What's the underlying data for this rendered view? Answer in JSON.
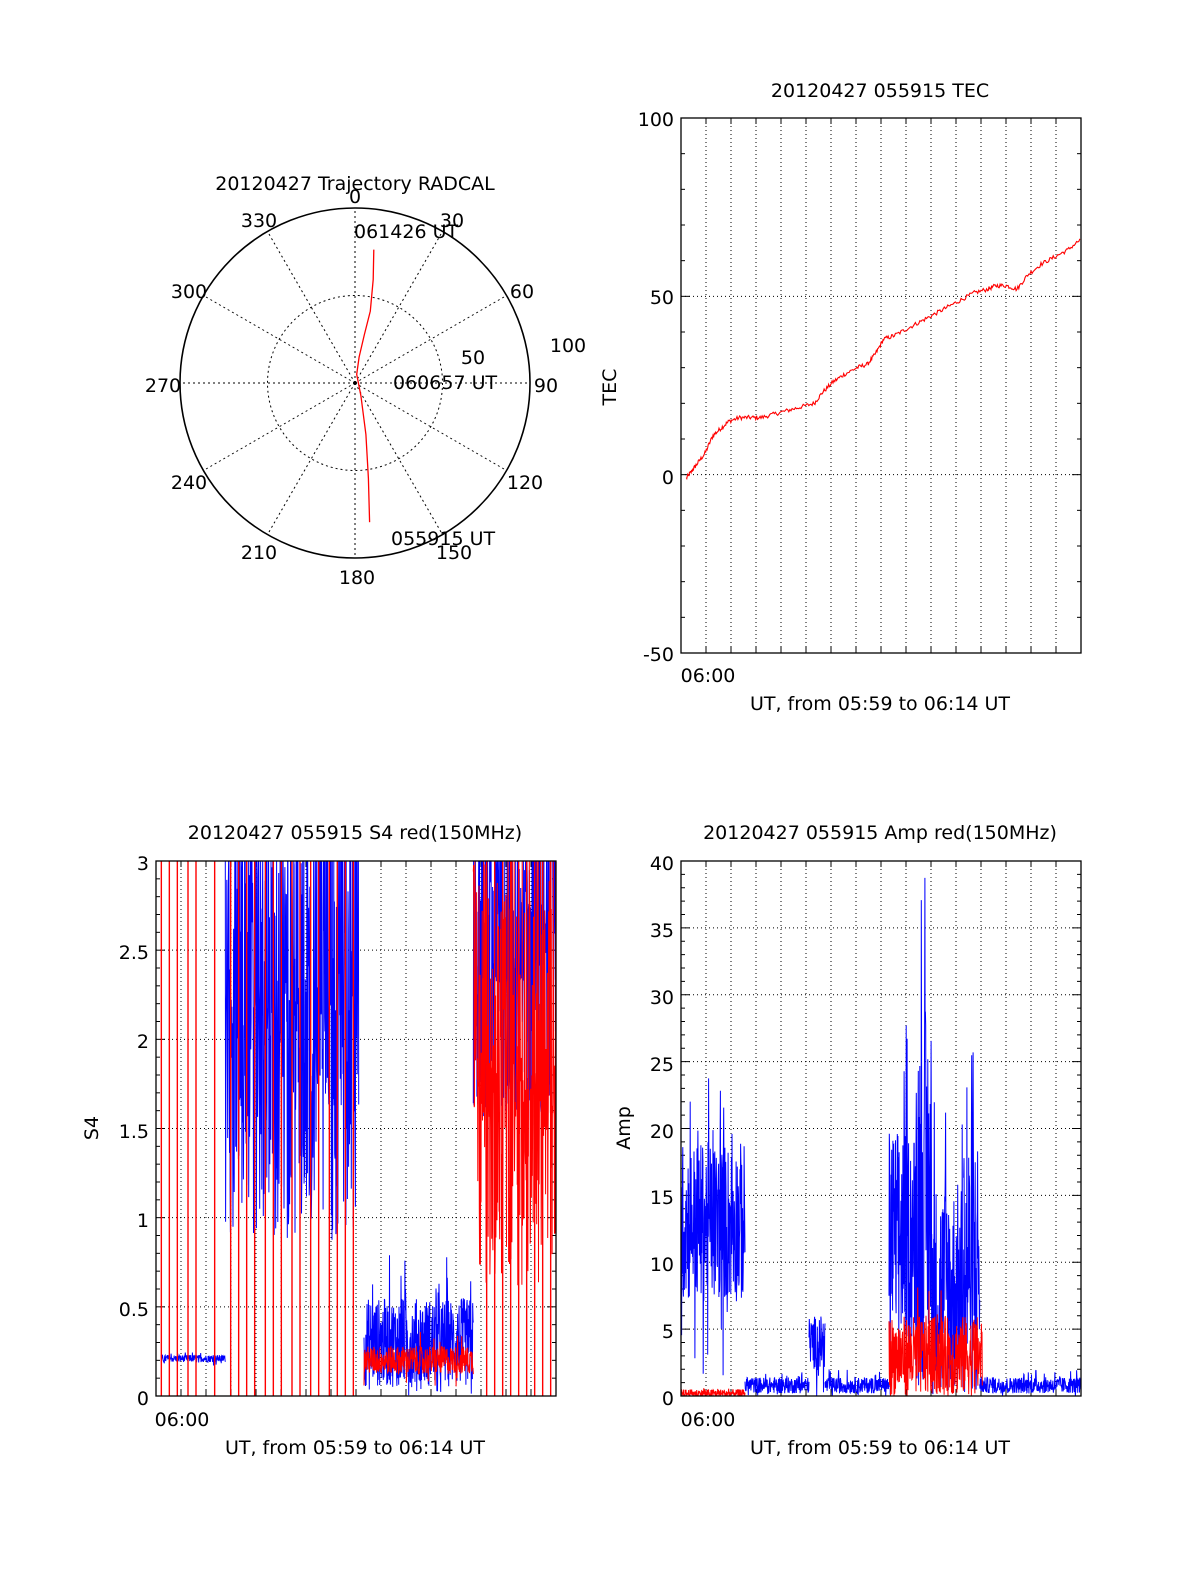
{
  "chart_data": [
    {
      "type": "polar",
      "title": "20120427 Trajectory RADCAL",
      "angle_labels": [
        "0",
        "30",
        "60",
        "90",
        "120",
        "150",
        "180",
        "210",
        "240",
        "270",
        "300",
        "330"
      ],
      "radius_labels": [
        "50",
        "100"
      ],
      "rlim": [
        0,
        100
      ],
      "grid": true,
      "series": [
        {
          "color": "#ff0000",
          "points": [
            [
              8,
              77
            ],
            [
              10,
              60
            ],
            [
              12,
              42
            ],
            [
              11,
              28
            ],
            [
              9,
              15
            ],
            [
              11,
              5
            ],
            [
              155,
              8
            ],
            [
              168,
              30
            ],
            [
              172,
              55
            ],
            [
              174,
              80
            ]
          ]
        }
      ],
      "annotations": [
        {
          "text": "061426 UT",
          "az": 3,
          "r": 82
        },
        {
          "text": "060657 UT",
          "az": 102,
          "r": 28
        },
        {
          "text": "055915 UT",
          "az": 162,
          "r": 88
        }
      ]
    },
    {
      "type": "line",
      "title": "20120427 055915 TEC",
      "ylabel": "TEC",
      "xlabel": "UT, from 05:59 to 06:14 UT",
      "xticks": [
        "06:00"
      ],
      "xlim": [
        0,
        15
      ],
      "ylim": [
        -50,
        100
      ],
      "yticks": [
        -50,
        0,
        50,
        100
      ],
      "grid": true,
      "series": [
        {
          "color": "#ff0000",
          "x": [
            0.2,
            0.4,
            0.6,
            0.9,
            1.2,
            1.5,
            1.8,
            2.2,
            2.6,
            3.0,
            3.5,
            4.0,
            4.5,
            5.0,
            5.3,
            5.7,
            6.1,
            6.6,
            7.0,
            7.3,
            7.6,
            8.0,
            8.5,
            9.0,
            9.5,
            10.0,
            10.5,
            11.0,
            11.5,
            11.8,
            12.2,
            12.6,
            13.0,
            13.5,
            14.0,
            14.5,
            15.0
          ],
          "y": [
            -1,
            1,
            3,
            6,
            11,
            13,
            15,
            16,
            16,
            16,
            17,
            18,
            19,
            20,
            23,
            26,
            28,
            30,
            31,
            34,
            38,
            39,
            41,
            43,
            45,
            47,
            49,
            51,
            52,
            53,
            53,
            52,
            56,
            59,
            61,
            63,
            66
          ],
          "noise": 0.6
        }
      ]
    },
    {
      "type": "line",
      "title": "20120427 055915 S4 red(150MHz)",
      "ylabel": "S4",
      "xlabel": "UT, from 05:59 to 06:14 UT",
      "xticks": [
        "06:00"
      ],
      "xlim": [
        0,
        15
      ],
      "ylim": [
        0,
        3
      ],
      "yticks": [
        "0",
        "0.5",
        "1",
        "1.5",
        "2",
        "2.5",
        "3"
      ],
      "grid": true,
      "series": [
        {
          "color": "#0000ff",
          "segments": [
            {
              "x": [
                0.2,
                2.6
              ],
              "base": 0.21,
              "noise": 0.02
            },
            {
              "x": [
                2.6,
                7.6
              ],
              "base": 2.3,
              "noise": 0.9,
              "wild": true
            },
            {
              "x": [
                7.8,
                11.9
              ],
              "base": 0.3,
              "noise": 0.25
            },
            {
              "x": [
                11.9,
                15.0
              ],
              "base": 2.5,
              "noise": 0.6,
              "wild": true
            }
          ]
        },
        {
          "color": "#ff0000",
          "spikes_x": [
            0.2,
            0.5,
            0.8,
            1.2,
            1.5,
            2.2,
            2.8,
            3.1,
            3.4,
            3.7,
            4.1,
            4.4,
            4.7,
            5.1,
            5.4,
            5.8,
            6.1,
            6.5,
            6.8,
            7.1,
            7.4,
            12.4,
            12.7,
            13.0,
            13.3,
            13.6,
            13.9,
            14.2,
            14.5,
            14.8
          ],
          "segments": [
            {
              "x": [
                7.8,
                11.9
              ],
              "base": 0.2,
              "noise": 0.08
            },
            {
              "x": [
                11.9,
                15.0
              ],
              "base": 1.9,
              "noise": 0.8,
              "wild": true
            }
          ]
        }
      ]
    },
    {
      "type": "line",
      "title": "20120427 055915 Amp red(150MHz)",
      "ylabel": "Amp",
      "xlabel": "UT, from 05:59 to 06:14 UT",
      "xticks": [
        "06:00"
      ],
      "xlim": [
        0,
        15
      ],
      "ylim": [
        0,
        40
      ],
      "yticks": [
        0,
        5,
        10,
        15,
        20,
        25,
        30,
        35,
        40
      ],
      "grid": true,
      "series": [
        {
          "color": "#0000ff",
          "segments": [
            {
              "x": [
                0.0,
                2.4
              ],
              "base": 13,
              "noise": 6
            },
            {
              "x": [
                2.4,
                4.8
              ],
              "base": 0.8,
              "noise": 0.6
            },
            {
              "x": [
                4.8,
                5.4
              ],
              "base": 4,
              "noise": 2
            },
            {
              "x": [
                5.4,
                7.8
              ],
              "base": 0.8,
              "noise": 0.6
            },
            {
              "x": [
                7.8,
                8.8
              ],
              "base": 12,
              "noise": 8
            },
            {
              "x": [
                8.8,
                9.4
              ],
              "base": 15,
              "noise": 14
            },
            {
              "x": [
                9.4,
                10.6
              ],
              "base": 8,
              "noise": 8
            },
            {
              "x": [
                10.6,
                11.2
              ],
              "base": 10,
              "noise": 10
            },
            {
              "x": [
                11.2,
                15.0
              ],
              "base": 0.8,
              "noise": 0.6
            }
          ]
        },
        {
          "color": "#ff0000",
          "segments": [
            {
              "x": [
                0.0,
                2.4
              ],
              "base": 0.2,
              "noise": 0.3
            },
            {
              "x": [
                7.8,
                11.3
              ],
              "base": 3,
              "noise": 3
            }
          ]
        }
      ]
    }
  ]
}
